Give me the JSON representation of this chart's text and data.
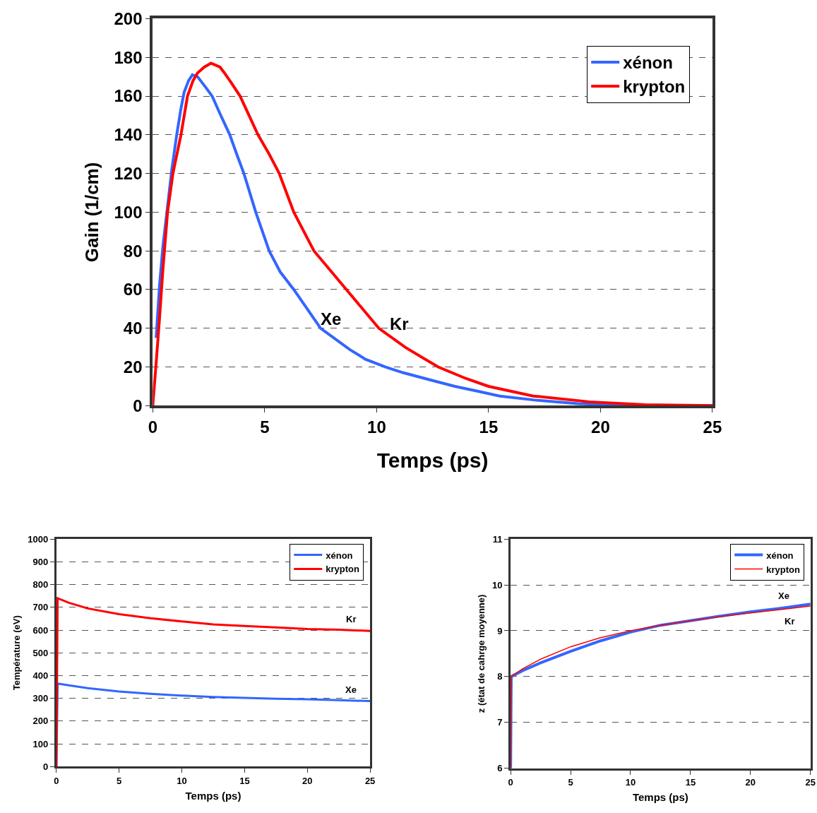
{
  "chart_data": [
    {
      "type": "line",
      "xlabel": "Temps (ps)",
      "ylabel": "Gain (1/cm)",
      "xlim": [
        0,
        25
      ],
      "xticks": [
        0,
        5,
        10,
        15,
        20,
        25
      ],
      "ylim": [
        0,
        200
      ],
      "yticks": [
        0,
        20,
        40,
        60,
        80,
        100,
        120,
        140,
        160,
        180,
        200
      ],
      "grid": "y",
      "legend": "top right",
      "line_style": "solid",
      "marker": "none",
      "annotations": [
        "Xe",
        "Kr"
      ],
      "series": [
        {
          "name": "xénon",
          "color": "#3366ff",
          "x": [
            0.15,
            0.3,
            0.45,
            0.63,
            0.85,
            1.07,
            1.25,
            1.4,
            1.6,
            1.77,
            2,
            2.2,
            2.4,
            2.65,
            3,
            3.44,
            3.75,
            4.07,
            4.6,
            5.2,
            5.7,
            6.3,
            6.9,
            7.5,
            8.8,
            9.5,
            10.4,
            11.2,
            12.5,
            13.5,
            14.5,
            15.5,
            17,
            19,
            20.5,
            22,
            25
          ],
          "values": [
            35,
            62,
            82,
            100,
            122,
            140,
            153,
            162,
            168,
            171,
            170,
            167,
            164,
            160,
            151,
            140,
            130,
            120,
            100,
            80,
            69,
            60,
            50,
            40,
            29,
            24,
            20,
            17,
            13,
            10,
            7.5,
            5,
            3,
            1,
            0.5,
            0,
            0
          ]
        },
        {
          "name": "krypton",
          "color": "#ff0000",
          "x": [
            0,
            0.15,
            0.3,
            0.45,
            0.66,
            0.9,
            1.26,
            1.55,
            1.8,
            2,
            2.3,
            2.6,
            3,
            3.2,
            3.5,
            3.9,
            4.3,
            4.7,
            5.2,
            5.65,
            6.3,
            7.2,
            8.65,
            10.1,
            11.3,
            12.75,
            14,
            15,
            17,
            19.5,
            22,
            25
          ],
          "values": [
            0,
            22,
            45,
            70,
            100,
            120,
            140,
            160,
            168,
            172,
            175,
            177,
            175,
            172,
            167,
            160,
            150,
            140,
            130,
            120,
            100,
            80,
            60,
            40,
            30,
            20,
            14,
            10,
            5,
            2,
            0.5,
            0
          ]
        }
      ]
    },
    {
      "type": "line",
      "xlabel": "Temps (ps)",
      "ylabel": "Température (eV)",
      "xlim": [
        0,
        25
      ],
      "xticks": [
        0,
        5,
        10,
        15,
        20,
        25
      ],
      "ylim": [
        0,
        1000
      ],
      "yticks": [
        0,
        100,
        200,
        300,
        400,
        500,
        600,
        700,
        800,
        900,
        1000
      ],
      "grid": "y",
      "legend": "top right",
      "line_style": "solid",
      "marker": "none",
      "annotations": [
        "Xe",
        "Kr"
      ],
      "series": [
        {
          "name": "xénon",
          "color": "#3366ff",
          "x": [
            0,
            0.1,
            1,
            2.5,
            5,
            7.5,
            10,
            12.5,
            15,
            17.5,
            20,
            22.5,
            25
          ],
          "values": [
            0,
            365,
            357,
            345,
            330,
            320,
            312,
            306,
            302,
            298,
            296,
            292,
            288
          ]
        },
        {
          "name": "krypton",
          "color": "#ff0000",
          "x": [
            0,
            0.1,
            1,
            2.5,
            5,
            7.5,
            10,
            12.5,
            15,
            17.5,
            20,
            22.5,
            25
          ],
          "values": [
            0,
            740,
            720,
            695,
            670,
            652,
            638,
            625,
            618,
            612,
            605,
            602,
            596
          ]
        }
      ]
    },
    {
      "type": "line",
      "xlabel": "Temps (ps)",
      "ylabel": "z (état de cahrge moyenne)",
      "xlim": [
        0,
        25
      ],
      "xticks": [
        0,
        5,
        10,
        15,
        20,
        25
      ],
      "ylim": [
        6,
        11
      ],
      "yticks": [
        6,
        7,
        8,
        9,
        10,
        11
      ],
      "grid": "y",
      "legend": "top right",
      "line_style": "solid",
      "marker": "none",
      "annotations": [
        "Xe",
        "Kr"
      ],
      "series": [
        {
          "name": "xénon",
          "color": "#3366ff",
          "x": [
            0,
            0.05,
            1,
            2.5,
            5,
            7.5,
            10,
            12.5,
            15,
            17.5,
            20,
            22.5,
            25
          ],
          "values": [
            6,
            8,
            8.13,
            8.3,
            8.55,
            8.78,
            8.97,
            9.12,
            9.22,
            9.32,
            9.41,
            9.49,
            9.58
          ]
        },
        {
          "name": "krypton",
          "color": "#ff0000",
          "x": [
            0,
            0.05,
            1,
            2.5,
            5,
            7.5,
            10,
            12.5,
            15,
            17.5,
            20,
            22.5,
            25
          ],
          "values": [
            6,
            8,
            8.17,
            8.38,
            8.65,
            8.85,
            9,
            9.12,
            9.22,
            9.31,
            9.39,
            9.46,
            9.54
          ]
        }
      ]
    }
  ]
}
